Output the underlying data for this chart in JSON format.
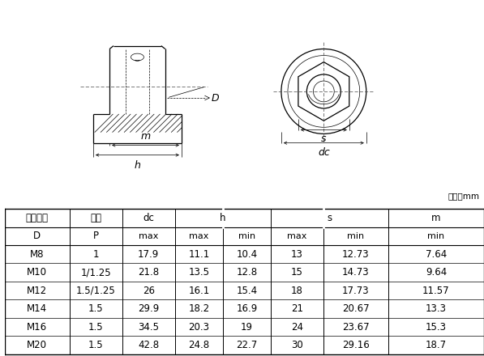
{
  "unit_label": "单位：mm",
  "col_header1": [
    "公称直径",
    "螺距",
    "dc",
    "h",
    "",
    "s",
    "",
    "m"
  ],
  "col_header2": [
    "D",
    "P",
    "max",
    "max",
    "min",
    "max",
    "min",
    "min"
  ],
  "rows": [
    [
      "M8",
      "1",
      "17.9",
      "11.1",
      "10.4",
      "13",
      "12.73",
      "7.64"
    ],
    [
      "M10",
      "1/1.25",
      "21.8",
      "13.5",
      "12.8",
      "15",
      "14.73",
      "9.64"
    ],
    [
      "M12",
      "1.5/1.25",
      "26",
      "16.1",
      "15.4",
      "18",
      "17.73",
      "11.57"
    ],
    [
      "M14",
      "1.5",
      "29.9",
      "18.2",
      "16.9",
      "21",
      "20.67",
      "13.3"
    ],
    [
      "M16",
      "1.5",
      "34.5",
      "20.3",
      "19",
      "24",
      "23.67",
      "15.3"
    ],
    [
      "M20",
      "1.5",
      "42.8",
      "24.8",
      "22.7",
      "30",
      "29.16",
      "18.7"
    ]
  ],
  "bg_color": "#ffffff",
  "lc": "#000000",
  "tc": "#000000",
  "fs": 8.5
}
